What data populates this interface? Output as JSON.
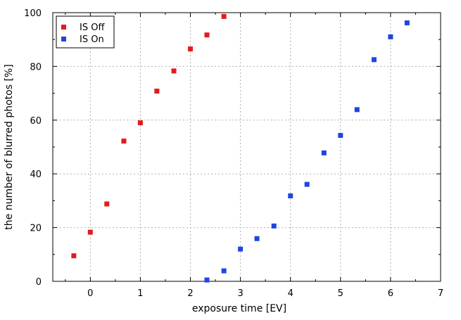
{
  "chart_data": {
    "type": "scatter",
    "title": "",
    "xlabel": "exposure time [EV]",
    "ylabel": "the number of blurred photos [%]",
    "xlim": [
      -0.75,
      7
    ],
    "ylim": [
      0,
      100
    ],
    "xticks": [
      "0",
      "1",
      "2",
      "3",
      "4",
      "5",
      "6",
      "7"
    ],
    "yticks": [
      "0",
      "20",
      "40",
      "60",
      "80",
      "100"
    ],
    "grid": true,
    "legend_position": "top-left",
    "series": [
      {
        "name": "IS Off",
        "color": "#e31a1c",
        "marker": "square",
        "x": [
          -0.33,
          0,
          0.33,
          0.67,
          1.0,
          1.33,
          1.67,
          2.0,
          2.33,
          2.67
        ],
        "y": [
          9.5,
          18.3,
          28.8,
          52.2,
          59.0,
          70.8,
          78.3,
          86.5,
          91.7,
          98.6
        ]
      },
      {
        "name": "IS On",
        "color": "#1f45e0",
        "marker": "square",
        "x": [
          2.33,
          2.67,
          3.0,
          3.33,
          3.67,
          4.0,
          4.33,
          4.67,
          5.0,
          5.33,
          5.67,
          6.0,
          6.33
        ],
        "y": [
          0.5,
          3.9,
          12.0,
          15.9,
          20.6,
          31.8,
          36.1,
          47.8,
          54.3,
          63.9,
          82.5,
          91.0,
          96.2
        ]
      }
    ]
  }
}
